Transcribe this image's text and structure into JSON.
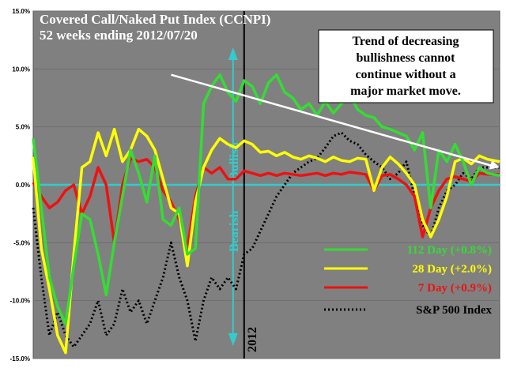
{
  "chart_data": {
    "type": "line",
    "title": "Covered Call/Naked Put Index (CCNPI)",
    "subtitle": "52 weeks ending 2012/07/20",
    "ylim": [
      -15,
      15
    ],
    "yticks": [
      15,
      10,
      5,
      0,
      -5,
      -10,
      -15
    ],
    "ytick_labels": [
      "15.0%",
      "10.0%",
      "5.0%",
      "0.0%",
      "-5.0%",
      "-10.0%",
      "-15.0%"
    ],
    "x_count": 116,
    "year_marker": {
      "label": "2012",
      "x_index": 52
    },
    "bullish_label": "Bullish",
    "bearish_label": "Bearish",
    "annotation": {
      "lines": [
        "Trend of decreasing",
        "bullishness cannot",
        "continue without a",
        "major market move."
      ]
    },
    "trend_line": {
      "x": [
        34,
        115
      ],
      "y": [
        9.5,
        1.5
      ]
    },
    "legend": [
      {
        "label": "112 Day (+0.8%)",
        "color": "#33dd33",
        "style": "solid"
      },
      {
        "label": "28 Day (+2.0%)",
        "color": "#ffff00",
        "style": "solid"
      },
      {
        "label": "7 Day (+0.9%)",
        "color": "#ee1111",
        "style": "solid"
      },
      {
        "label": "S&P 500 Index",
        "color": "#000000",
        "style": "dotted"
      }
    ],
    "series": [
      {
        "name": "112 Day (+0.8%)",
        "color": "#33dd33",
        "points": [
          [
            0,
            4
          ],
          [
            2,
            -2
          ],
          [
            4,
            -8
          ],
          [
            6,
            -10.5
          ],
          [
            8,
            -12
          ],
          [
            10,
            -7
          ],
          [
            12,
            -2.5
          ],
          [
            14,
            -3
          ],
          [
            16,
            -6
          ],
          [
            18,
            -9.5
          ],
          [
            20,
            -5
          ],
          [
            22,
            -1
          ],
          [
            24,
            3
          ],
          [
            26,
            1
          ],
          [
            28,
            -1.5
          ],
          [
            30,
            2.5
          ],
          [
            32,
            -3
          ],
          [
            34,
            -3.5
          ],
          [
            36,
            -2
          ],
          [
            38,
            -6
          ],
          [
            40,
            -5.5
          ],
          [
            42,
            7
          ],
          [
            44,
            8.5
          ],
          [
            46,
            9.5
          ],
          [
            48,
            8
          ],
          [
            50,
            7.2
          ],
          [
            52,
            9
          ],
          [
            54,
            8.5
          ],
          [
            56,
            7
          ],
          [
            58,
            8.8
          ],
          [
            60,
            9.5
          ],
          [
            62,
            8
          ],
          [
            64,
            7.5
          ],
          [
            66,
            6.5
          ],
          [
            68,
            7
          ],
          [
            70,
            6
          ],
          [
            72,
            7.2
          ],
          [
            74,
            6.2
          ],
          [
            76,
            7
          ],
          [
            78,
            7.8
          ],
          [
            80,
            6.5
          ],
          [
            82,
            6
          ],
          [
            84,
            5.8
          ],
          [
            86,
            5
          ],
          [
            88,
            4.8
          ],
          [
            90,
            4.5
          ],
          [
            92,
            4.2
          ],
          [
            94,
            3
          ],
          [
            96,
            4.5
          ],
          [
            98,
            -2
          ],
          [
            100,
            3
          ],
          [
            102,
            2
          ],
          [
            104,
            3.5
          ],
          [
            106,
            2
          ],
          [
            108,
            0
          ],
          [
            110,
            1.5
          ],
          [
            112,
            1
          ],
          [
            115,
            0.8
          ]
        ]
      },
      {
        "name": "28 Day (+2.0%)",
        "color": "#ffff00",
        "points": [
          [
            0,
            2.4
          ],
          [
            2,
            -5.5
          ],
          [
            4,
            -9
          ],
          [
            6,
            -13
          ],
          [
            8,
            -14.5
          ],
          [
            10,
            -6
          ],
          [
            12,
            1.5
          ],
          [
            14,
            2
          ],
          [
            16,
            4.5
          ],
          [
            18,
            2.5
          ],
          [
            20,
            4.8
          ],
          [
            22,
            2
          ],
          [
            24,
            3
          ],
          [
            26,
            4.8
          ],
          [
            28,
            4.2
          ],
          [
            30,
            3
          ],
          [
            32,
            0.5
          ],
          [
            34,
            -2
          ],
          [
            36,
            -2.5
          ],
          [
            38,
            -7
          ],
          [
            40,
            -1.5
          ],
          [
            42,
            1.5
          ],
          [
            44,
            3
          ],
          [
            46,
            4
          ],
          [
            48,
            3.5
          ],
          [
            50,
            3.2
          ],
          [
            52,
            3.8
          ],
          [
            54,
            3.5
          ],
          [
            56,
            2.8
          ],
          [
            58,
            2.9
          ],
          [
            60,
            2.5
          ],
          [
            62,
            2.8
          ],
          [
            64,
            2.4
          ],
          [
            66,
            2.2
          ],
          [
            68,
            2.5
          ],
          [
            70,
            2.3
          ],
          [
            72,
            2
          ],
          [
            74,
            2.4
          ],
          [
            76,
            2.1
          ],
          [
            78,
            2
          ],
          [
            80,
            2.3
          ],
          [
            82,
            2.2
          ],
          [
            84,
            -0.5
          ],
          [
            86,
            1.5
          ],
          [
            88,
            2.4
          ],
          [
            90,
            1.8
          ],
          [
            92,
            1
          ],
          [
            94,
            0
          ],
          [
            96,
            -3
          ],
          [
            98,
            -4.5
          ],
          [
            100,
            -3
          ],
          [
            102,
            -1
          ],
          [
            104,
            2
          ],
          [
            106,
            2.3
          ],
          [
            108,
            1.8
          ],
          [
            110,
            2.5
          ],
          [
            112,
            2.2
          ],
          [
            115,
            2
          ]
        ]
      },
      {
        "name": "7 Day (+0.9%)",
        "color": "#ee1111",
        "points": [
          [
            0,
            0.2
          ],
          [
            2,
            -1
          ],
          [
            4,
            -2
          ],
          [
            6,
            -1.5
          ],
          [
            8,
            -0.5
          ],
          [
            10,
            0
          ],
          [
            12,
            -2.5
          ],
          [
            14,
            -1
          ],
          [
            16,
            1.5
          ],
          [
            18,
            0
          ],
          [
            20,
            -5
          ],
          [
            22,
            0
          ],
          [
            24,
            2.3
          ],
          [
            26,
            2
          ],
          [
            28,
            2.2
          ],
          [
            30,
            1.5
          ],
          [
            32,
            -0.5
          ],
          [
            34,
            -1.5
          ],
          [
            36,
            -3
          ],
          [
            38,
            -5.5
          ],
          [
            40,
            -1
          ],
          [
            42,
            1.5
          ],
          [
            44,
            1
          ],
          [
            46,
            1.5
          ],
          [
            48,
            0.5
          ],
          [
            50,
            0.5
          ],
          [
            52,
            1.2
          ],
          [
            54,
            1
          ],
          [
            56,
            0.8
          ],
          [
            58,
            1
          ],
          [
            60,
            0.8
          ],
          [
            62,
            1
          ],
          [
            64,
            0.9
          ],
          [
            66,
            0.8
          ],
          [
            68,
            0.9
          ],
          [
            70,
            1
          ],
          [
            72,
            0.8
          ],
          [
            74,
            1
          ],
          [
            76,
            0.9
          ],
          [
            78,
            1.1
          ],
          [
            80,
            1
          ],
          [
            82,
            0.9
          ],
          [
            84,
            -0.5
          ],
          [
            86,
            0.8
          ],
          [
            88,
            0.9
          ],
          [
            90,
            0.5
          ],
          [
            92,
            0
          ],
          [
            94,
            -1
          ],
          [
            96,
            -4.5
          ],
          [
            98,
            -2
          ],
          [
            100,
            -0.5
          ],
          [
            102,
            0.5
          ],
          [
            104,
            0.7
          ],
          [
            106,
            0.5
          ],
          [
            108,
            0.3
          ],
          [
            110,
            1
          ],
          [
            112,
            0.9
          ],
          [
            115,
            0.9
          ]
        ]
      },
      {
        "name": "S&P 500 Index",
        "color": "#000000",
        "dotted": true,
        "points": [
          [
            0,
            -2
          ],
          [
            2,
            -8
          ],
          [
            4,
            -13
          ],
          [
            6,
            -11
          ],
          [
            8,
            -13
          ],
          [
            10,
            -14
          ],
          [
            12,
            -13
          ],
          [
            14,
            -12
          ],
          [
            16,
            -10
          ],
          [
            18,
            -13
          ],
          [
            20,
            -12
          ],
          [
            22,
            -9
          ],
          [
            24,
            -11
          ],
          [
            26,
            -10
          ],
          [
            28,
            -12
          ],
          [
            30,
            -10
          ],
          [
            32,
            -8
          ],
          [
            34,
            -5
          ],
          [
            36,
            -8
          ],
          [
            38,
            -10
          ],
          [
            40,
            -13.5
          ],
          [
            42,
            -10
          ],
          [
            44,
            -8
          ],
          [
            46,
            -9
          ],
          [
            48,
            -8
          ],
          [
            50,
            -9
          ],
          [
            52,
            -6
          ],
          [
            54,
            -5.5
          ],
          [
            56,
            -4
          ],
          [
            58,
            -2.5
          ],
          [
            60,
            -1
          ],
          [
            62,
            0
          ],
          [
            64,
            1
          ],
          [
            66,
            1.5
          ],
          [
            68,
            2
          ],
          [
            70,
            2.3
          ],
          [
            72,
            3.2
          ],
          [
            74,
            4.2
          ],
          [
            76,
            4.5
          ],
          [
            78,
            3.8
          ],
          [
            80,
            3.5
          ],
          [
            82,
            2.6
          ],
          [
            84,
            2
          ],
          [
            86,
            1.5
          ],
          [
            88,
            0.5
          ],
          [
            90,
            1
          ],
          [
            92,
            2
          ],
          [
            94,
            -1
          ],
          [
            96,
            -3.5
          ],
          [
            98,
            -4.5
          ],
          [
            100,
            -2
          ],
          [
            102,
            -0.5
          ],
          [
            104,
            0
          ],
          [
            106,
            1
          ],
          [
            108,
            0.5
          ],
          [
            110,
            1.5
          ],
          [
            112,
            1.5
          ],
          [
            115,
            1.5
          ]
        ]
      }
    ]
  }
}
